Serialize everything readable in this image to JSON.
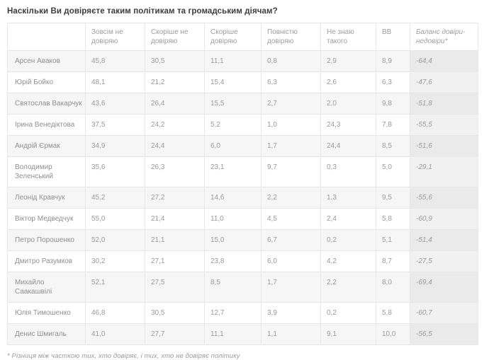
{
  "colors": {
    "border": "#e7e7e7",
    "stripe_bg": "#f6f6f6",
    "balance_bg": "#f1f1f1",
    "balance_stripe_bg": "#eaeaea",
    "text": "#9a9a9a",
    "title_text": "#3c3c3c"
  },
  "chart_data": {
    "type": "table",
    "title": "Наскільки Ви довіряєте таким політикам та громадським діячам?",
    "decimal_separator": ",",
    "columns": [
      "",
      "Зовсім не довіряю",
      "Скоріше не довіряю",
      "Скоріше довіряю",
      "Повністю довіряю",
      "Не знаю такого",
      "ВВ",
      "Баланс довіри-недовіри*"
    ],
    "rows": [
      {
        "name": "Арсен Аваков",
        "values": [
          45.8,
          30.5,
          11.1,
          0.8,
          2.9,
          8.9,
          -64.4
        ]
      },
      {
        "name": "Юрій Бойко",
        "values": [
          48.1,
          21.2,
          15.4,
          6.3,
          2.6,
          6.3,
          -47.6
        ]
      },
      {
        "name": "Святослав Вакарчук",
        "values": [
          43.6,
          26.4,
          15.5,
          2.7,
          2.0,
          9.8,
          -51.8
        ]
      },
      {
        "name": "Ірина Венедіктова",
        "values": [
          37.5,
          24.2,
          5.2,
          1.0,
          24.3,
          7.8,
          -55.5
        ]
      },
      {
        "name": "Андрій Єрмак",
        "values": [
          34.9,
          24.4,
          6.0,
          1.7,
          24.4,
          8.5,
          -51.6
        ]
      },
      {
        "name": "Володимир Зеленський",
        "values": [
          35.6,
          26.3,
          23.1,
          9.7,
          0.3,
          5.0,
          -29.1
        ]
      },
      {
        "name": "Леонід Кравчук",
        "values": [
          45.2,
          27.2,
          14.6,
          2.2,
          1.3,
          9.5,
          -55.6
        ]
      },
      {
        "name": "Віктор Медведчук",
        "values": [
          55.0,
          21.4,
          11.0,
          4.5,
          2.4,
          5.8,
          -60.9
        ]
      },
      {
        "name": "Петро Порошенко",
        "values": [
          52.0,
          21.1,
          15.0,
          6.7,
          0.2,
          5.1,
          -51.4
        ]
      },
      {
        "name": "Дмитро Разумков",
        "values": [
          30.2,
          27.1,
          23.8,
          6.0,
          4.2,
          8.7,
          -27.5
        ]
      },
      {
        "name": "Михайло Саакашвілі",
        "values": [
          52.1,
          27.5,
          8.5,
          1.7,
          2.2,
          8.0,
          -69.4
        ]
      },
      {
        "name": "Юлія Тимошенко",
        "values": [
          46.8,
          30.5,
          12.7,
          3.9,
          0.2,
          5.8,
          -60.7
        ]
      },
      {
        "name": "Денис Шмигаль",
        "values": [
          41.0,
          27.7,
          11.1,
          1.1,
          9.1,
          10.0,
          -56.5
        ]
      }
    ],
    "footnote": "* Різниця між часткою тих, хто довіряє, і тих, хто не довіряє політику"
  }
}
